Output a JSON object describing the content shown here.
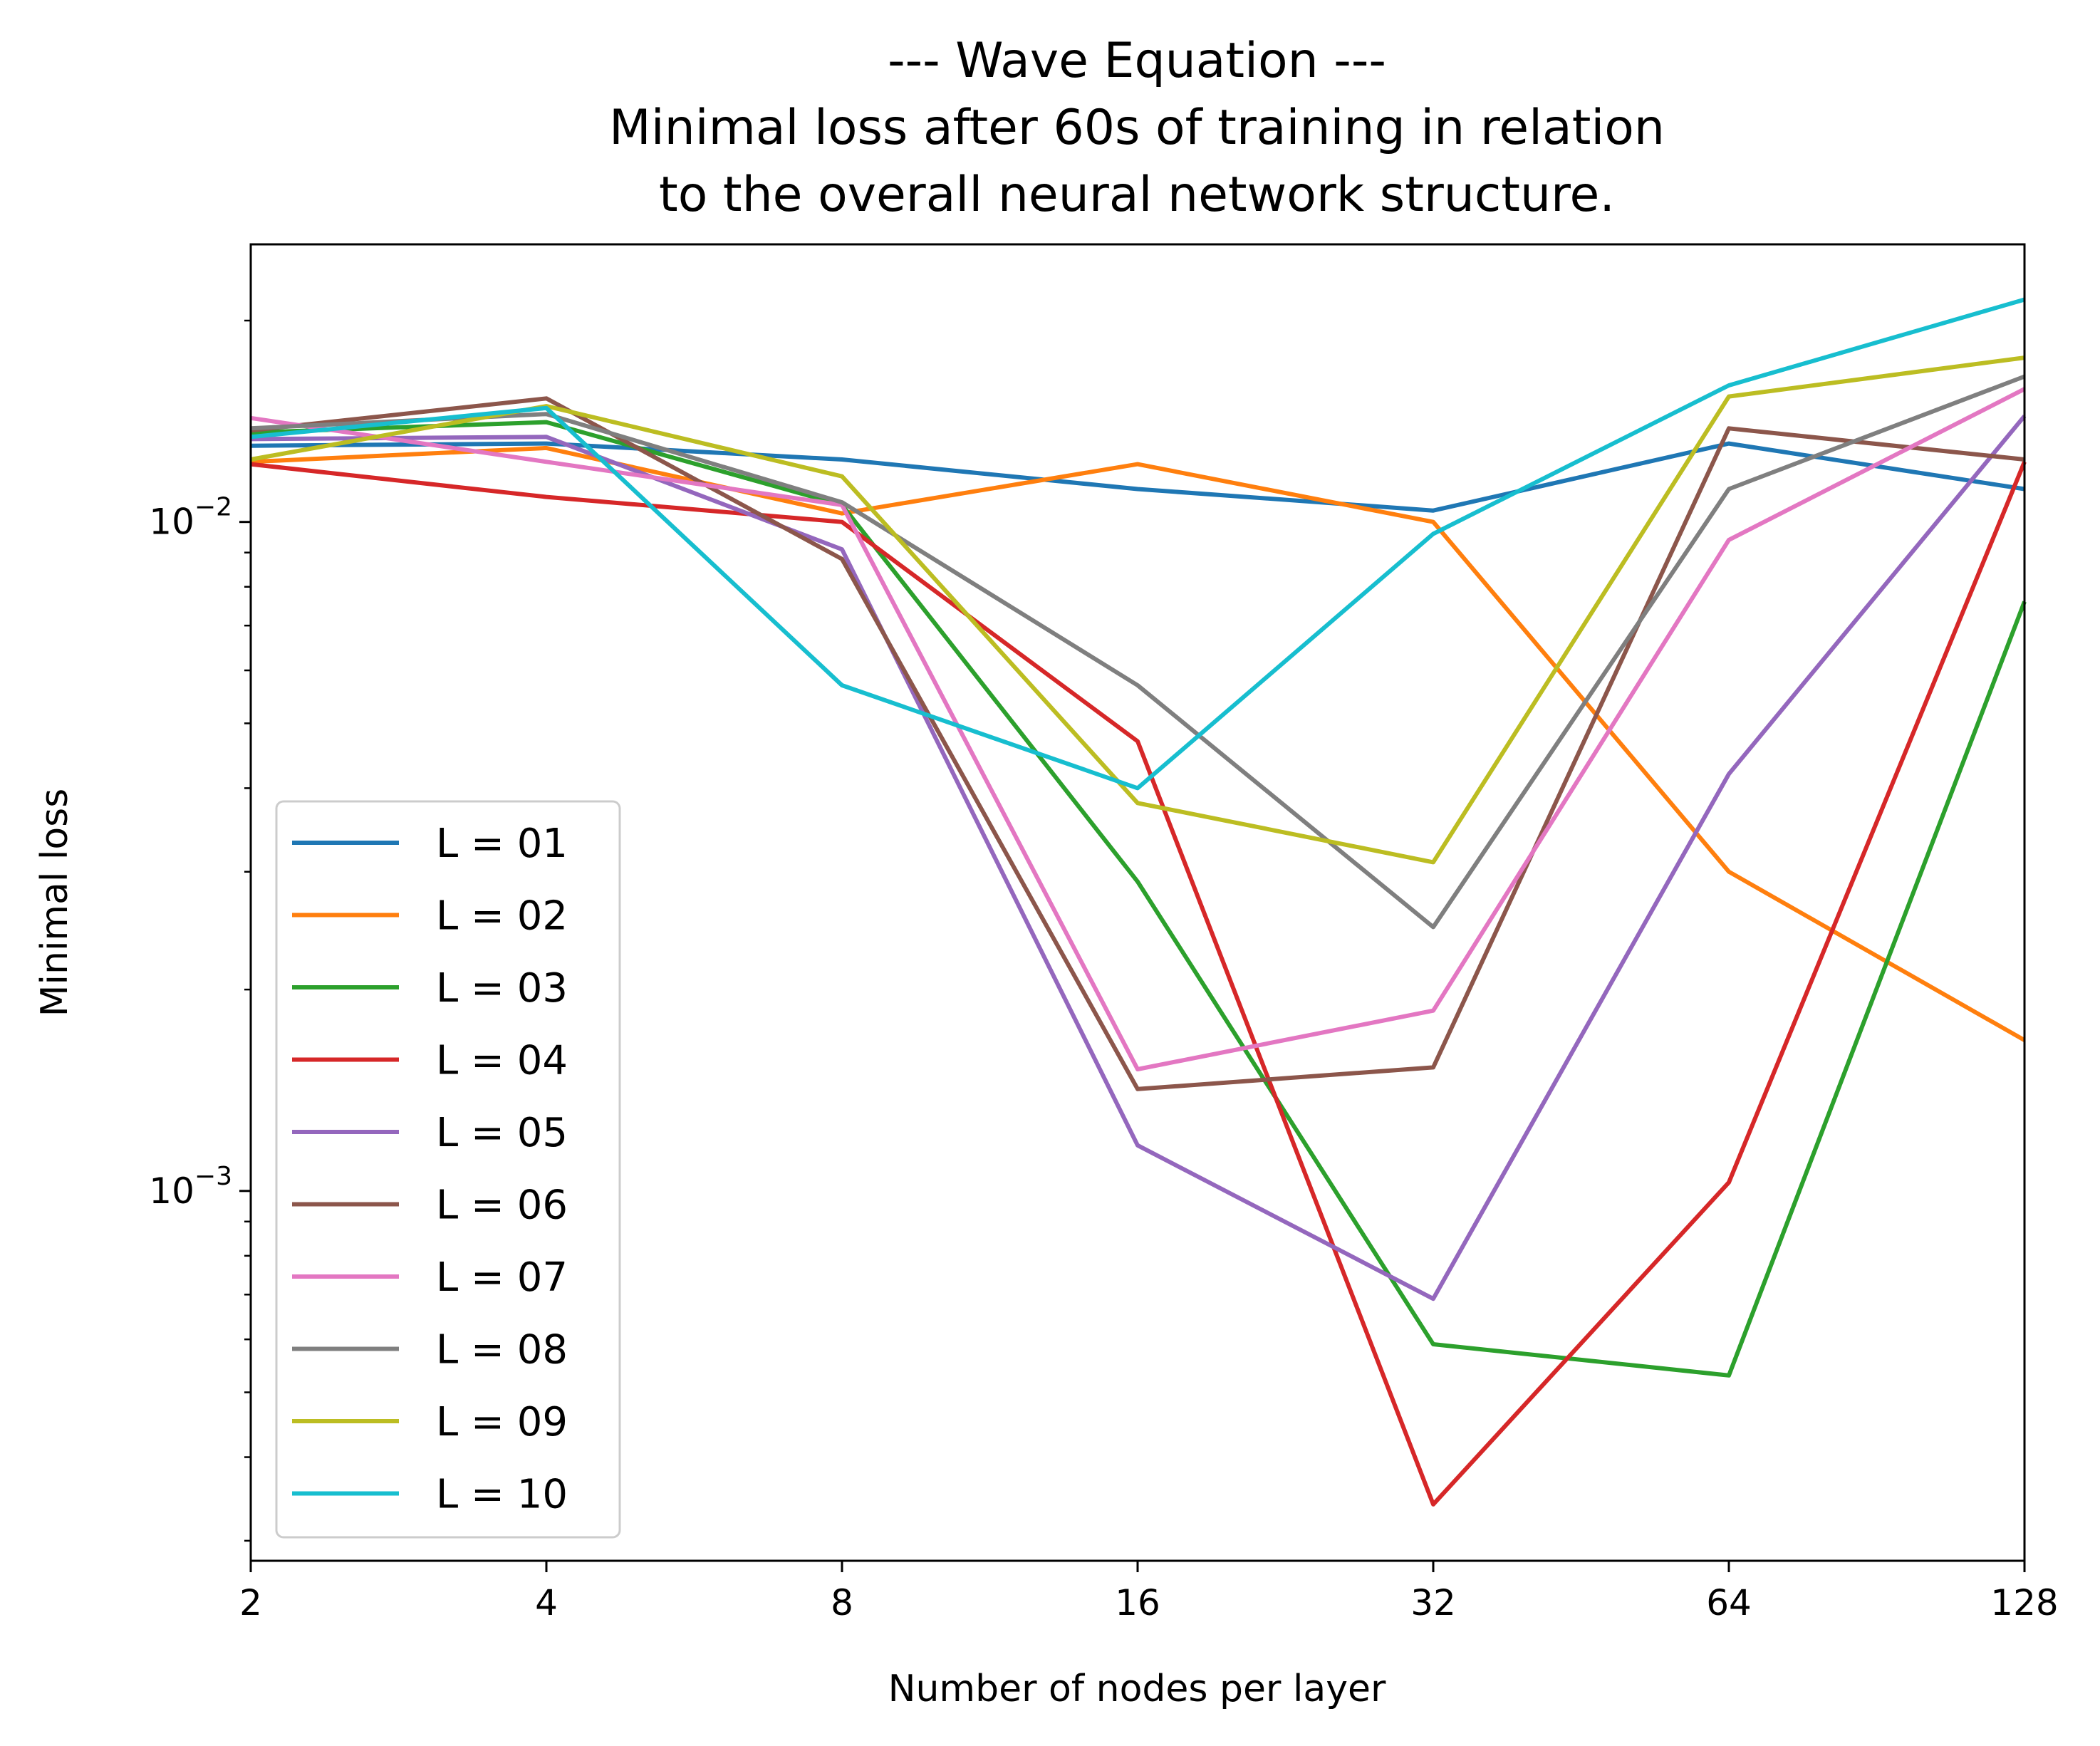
{
  "chart_data": {
    "type": "line",
    "title_lines": [
      "--- Wave Equation ---",
      "Minimal loss after 60s of training in relation",
      "to the overall neural network structure."
    ],
    "xlabel": "Number of nodes per layer",
    "ylabel": "Minimal loss",
    "x": [
      2,
      4,
      8,
      16,
      32,
      64,
      128
    ],
    "x_tick_labels": [
      "2",
      "4",
      "8",
      "16",
      "32",
      "64",
      "128"
    ],
    "x_scale": "log2",
    "y_scale": "log10",
    "y_major_ticks": [
      0.01,
      0.001
    ],
    "y_major_tick_labels": [
      {
        "base": "10",
        "exp": "−2"
      },
      {
        "base": "10",
        "exp": "−3"
      }
    ],
    "ylim": [
      0.00028,
      0.026
    ],
    "grid": false,
    "legend_placement": "lower-left",
    "series": [
      {
        "name": "L = 01",
        "color": "#1f77b4",
        "values": [
          0.013,
          0.0131,
          0.0124,
          0.0112,
          0.0104,
          0.0131,
          0.0112
        ]
      },
      {
        "name": "L = 02",
        "color": "#ff7f0e",
        "values": [
          0.0123,
          0.0129,
          0.0103,
          0.0122,
          0.01,
          0.003,
          0.00168
        ]
      },
      {
        "name": "L = 03",
        "color": "#2ca02c",
        "values": [
          0.0136,
          0.0141,
          0.0106,
          0.0029,
          0.00059,
          0.00053,
          0.0076
        ]
      },
      {
        "name": "L = 04",
        "color": "#d62728",
        "values": [
          0.0122,
          0.0109,
          0.01,
          0.0047,
          0.00034,
          0.00103,
          0.0123
        ]
      },
      {
        "name": "L = 05",
        "color": "#9467bd",
        "values": [
          0.0133,
          0.0134,
          0.0091,
          0.00117,
          0.00069,
          0.0042,
          0.0144
        ]
      },
      {
        "name": "L = 06",
        "color": "#8c564b",
        "values": [
          0.0137,
          0.0153,
          0.0088,
          0.00142,
          0.00153,
          0.0138,
          0.0124
        ]
      },
      {
        "name": "L = 07",
        "color": "#e377c2",
        "values": [
          0.0143,
          0.0123,
          0.0106,
          0.00152,
          0.00186,
          0.0094,
          0.0158
        ]
      },
      {
        "name": "L = 08",
        "color": "#7f7f7f",
        "values": [
          0.0138,
          0.0145,
          0.0107,
          0.0057,
          0.00248,
          0.0112,
          0.0165
        ]
      },
      {
        "name": "L = 09",
        "color": "#bcbd22",
        "values": [
          0.0124,
          0.0149,
          0.0117,
          0.0038,
          0.0031,
          0.0154,
          0.0176
        ]
      },
      {
        "name": "L = 10",
        "color": "#17becf",
        "values": [
          0.0134,
          0.0148,
          0.0057,
          0.004,
          0.0096,
          0.016,
          0.0215
        ]
      }
    ]
  }
}
